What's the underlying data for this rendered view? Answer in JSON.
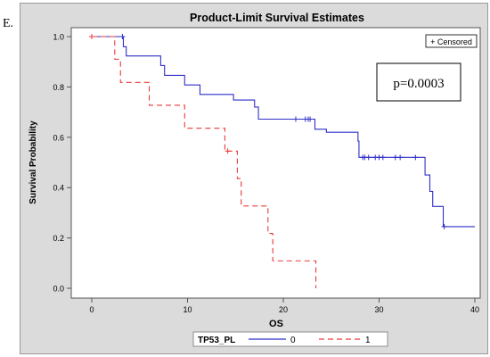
{
  "panel_label": "E.",
  "chart_data": {
    "type": "line",
    "step": true,
    "title": "Product-Limit Survival Estimates",
    "xlabel": "OS",
    "ylabel": "Survival Probability",
    "xlim": [
      0,
      40
    ],
    "ylim": [
      0,
      1
    ],
    "xticks": [
      "0",
      "10",
      "20",
      "30",
      "40"
    ],
    "yticks": [
      "0.0",
      "0.2",
      "0.4",
      "0.6",
      "0.8",
      "1.0"
    ],
    "grid": false,
    "censored_legend": "+ Censored",
    "annotation": "p=0.0003",
    "legend": {
      "title": "TP53_PL",
      "placement": "bottom",
      "entries": [
        "0",
        "1"
      ]
    },
    "series": [
      {
        "name": "0",
        "color": "#2f2fc8",
        "dash": "solid",
        "steps": [
          [
            0,
            1.0
          ],
          [
            3.3,
            0.96
          ],
          [
            3.6,
            0.923
          ],
          [
            7.2,
            0.885
          ],
          [
            7.6,
            0.846
          ],
          [
            9.7,
            0.808
          ],
          [
            11.3,
            0.77
          ],
          [
            14.8,
            0.748
          ],
          [
            17.0,
            0.72
          ],
          [
            17.4,
            0.672
          ],
          [
            23.3,
            0.632
          ],
          [
            24.5,
            0.62
          ],
          [
            27.8,
            0.585
          ],
          [
            27.9,
            0.52
          ],
          [
            28.0,
            0.52
          ],
          [
            34.8,
            0.45
          ],
          [
            35.3,
            0.385
          ],
          [
            35.6,
            0.325
          ],
          [
            36.7,
            0.245
          ],
          [
            40.0,
            0.245
          ]
        ],
        "censored": [
          0,
          3.2,
          21.3,
          22.3,
          22.6,
          22.8,
          28.3,
          28.5,
          28.9,
          29.6,
          30.0,
          30.4,
          31.7,
          32.2,
          33.8,
          36.8
        ]
      },
      {
        "name": "1",
        "color": "#e83a3a",
        "dash": "dashed",
        "steps": [
          [
            0,
            1.0
          ],
          [
            2.4,
            0.91
          ],
          [
            3.0,
            0.818
          ],
          [
            6.0,
            0.727
          ],
          [
            9.7,
            0.636
          ],
          [
            13.9,
            0.545
          ],
          [
            15.2,
            0.436
          ],
          [
            15.6,
            0.327
          ],
          [
            18.4,
            0.218
          ],
          [
            18.9,
            0.109
          ],
          [
            23.4,
            0.109
          ],
          [
            23.4,
            0.0
          ]
        ],
        "censored": [
          0,
          14.2
        ]
      }
    ]
  }
}
